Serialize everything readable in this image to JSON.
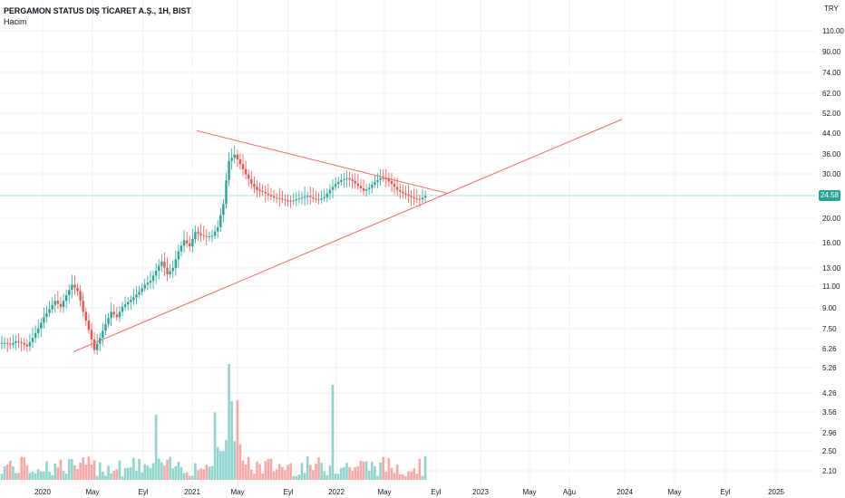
{
  "legend": {
    "title": "PERGAMON STATUS DIŞ TİCARET A.Ş., 1H, BIST",
    "volume_label": "Hacim"
  },
  "currency": "TRY",
  "last_price": "24.58",
  "colors": {
    "up": "#26a69a",
    "down": "#ef5350",
    "volume_up": "#8ed5cd",
    "volume_down": "#f7a8a6",
    "trendline": "#f0665f",
    "grid": "#eef0f3",
    "price_line": "#26a69a"
  },
  "chart_data": {
    "type": "candlestick",
    "title": "PERGAMON STATUS DIŞ TİCARET A.Ş., 1H, BIST",
    "scale": "log",
    "y_ticks": [
      "110.00",
      "90.00",
      "74.00",
      "62.00",
      "52.00",
      "44.00",
      "36.00",
      "30.00",
      "24.58",
      "20.00",
      "16.00",
      "13.00",
      "11.00",
      "9.00",
      "7.50",
      "6.26",
      "5.26",
      "4.26",
      "3.56",
      "2.96",
      "2.50",
      "2.10"
    ],
    "x_ticks": [
      "2020",
      "May",
      "Eyl",
      "2021",
      "May",
      "Eyl",
      "2022",
      "May",
      "Eyl",
      "2023",
      "May",
      "Ağu",
      "2024",
      "May",
      "Eyl",
      "2025"
    ],
    "approx_closes": [
      6.3,
      6.2,
      6.4,
      6.3,
      6.1,
      6.6,
      7.2,
      8.0,
      8.6,
      9.3,
      8.8,
      9.8,
      10.8,
      10.2,
      8.4,
      7.1,
      5.9,
      6.6,
      7.5,
      8.4,
      8.0,
      8.8,
      9.2,
      9.6,
      10.1,
      10.8,
      11.2,
      12.3,
      13.4,
      11.9,
      12.6,
      14.7,
      16.3,
      15.4,
      17.6,
      17.1,
      16.8,
      17.0,
      18.4,
      22.8,
      34.0,
      36.0,
      33.0,
      30.0,
      27.5,
      26.0,
      25.5,
      24.8,
      24.2,
      24.0,
      23.6,
      23.4,
      23.8,
      24.2,
      24.6,
      24.0,
      23.8,
      24.3,
      26.0,
      27.5,
      28.5,
      29.0,
      28.2,
      27.0,
      25.8,
      26.5,
      28.0,
      29.0,
      28.8,
      27.5,
      26.0,
      25.2,
      24.6,
      24.0,
      23.8,
      24.58
    ],
    "volume_series": "Hacim",
    "trendlines": [
      {
        "name": "upper",
        "from": {
          "x": "2021-01",
          "y": 45.0
        },
        "to": {
          "x": "2022-08",
          "y": 25.2
        }
      },
      {
        "name": "lower",
        "from": {
          "x": "2020-03",
          "y": 5.8
        },
        "to": {
          "x": "2023-11",
          "y": 50.0
        }
      }
    ]
  }
}
